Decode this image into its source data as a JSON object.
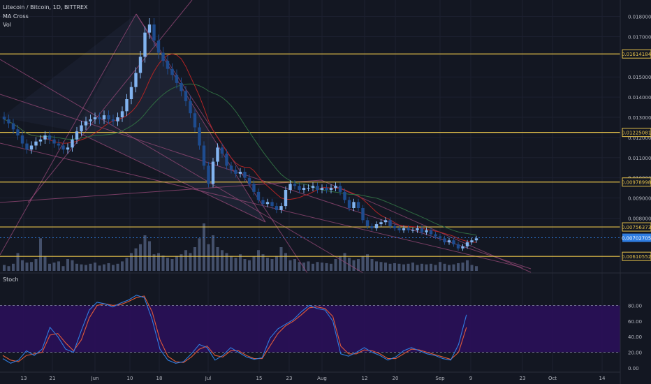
{
  "header": {
    "symbol": "Litecoin / Bitcoin, 1D, BITTREX",
    "indicators": [
      "MA Cross",
      "Vol"
    ]
  },
  "stoch": {
    "label": "Stoch"
  },
  "colors": {
    "background": "#131722",
    "candle_up": "#82b4f0",
    "candle_down": "#1e4c8f",
    "volume": "#4d5a78",
    "ma_fast": "#b32424",
    "ma_slow": "#2f6b41",
    "level": "#e4c04a",
    "trend": "#9a4a7a",
    "stoch_k": "#2f7de1",
    "stoch_d": "#e05a3a",
    "stoch_band": "#2b0f5c"
  },
  "chart_data": {
    "type": "candlestick",
    "x_ticks": [
      "13",
      "21",
      "Jun",
      "10",
      "18",
      "Jul",
      "15",
      "23",
      "Aug",
      "12",
      "20",
      "Sep",
      "9",
      "23",
      "Oct",
      "14"
    ],
    "y_ticks": [
      "0.01800000",
      "0.01700000",
      "0.01500000",
      "0.01400000",
      "0.01300000",
      "0.01200000",
      "0.01100000",
      "0.01000000",
      "0.00900000",
      "0.00800000"
    ],
    "y_range": [
      0.0058,
      0.0184
    ],
    "levels": [
      {
        "value": 0.01614184,
        "label": "0.01614184"
      },
      {
        "value": 0.01225081,
        "label": "0.01225081"
      },
      {
        "value": 0.00978998,
        "label": "0.00978998"
      },
      {
        "value": 0.00756373,
        "label": "0.00756373"
      },
      {
        "value": 0.00610552,
        "label": "0.00610552"
      }
    ],
    "last_price": {
      "value": 0.00702705,
      "label": "0.00702705"
    },
    "close_series": [
      0.0129,
      0.0127,
      0.0124,
      0.0121,
      0.0117,
      0.0114,
      0.0116,
      0.0118,
      0.0119,
      0.0121,
      0.0119,
      0.0117,
      0.0116,
      0.0114,
      0.0115,
      0.0119,
      0.0123,
      0.0126,
      0.0128,
      0.0129,
      0.013,
      0.0129,
      0.0131,
      0.0129,
      0.0128,
      0.013,
      0.0133,
      0.0139,
      0.0145,
      0.0152,
      0.016,
      0.0172,
      0.0176,
      0.0168,
      0.0162,
      0.0158,
      0.0154,
      0.0151,
      0.0147,
      0.0143,
      0.0138,
      0.0132,
      0.0125,
      0.0116,
      0.0106,
      0.0097,
      0.0108,
      0.0115,
      0.0112,
      0.0106,
      0.0104,
      0.0102,
      0.0103,
      0.01,
      0.0097,
      0.0093,
      0.0089,
      0.0087,
      0.0088,
      0.0086,
      0.0084,
      0.0086,
      0.0094,
      0.0097,
      0.0096,
      0.0094,
      0.0095,
      0.0095,
      0.0096,
      0.0094,
      0.0095,
      0.0094,
      0.0095,
      0.0096,
      0.0093,
      0.0089,
      0.0085,
      0.0088,
      0.0085,
      0.0079,
      0.0076,
      0.0075,
      0.0077,
      0.0078,
      0.0079,
      0.0076,
      0.0075,
      0.0074,
      0.0075,
      0.0074,
      0.0074,
      0.0075,
      0.0073,
      0.0074,
      0.0072,
      0.0071,
      0.007,
      0.0068,
      0.0069,
      0.0067,
      0.0065,
      0.0066,
      0.0068,
      0.0069,
      0.007
    ],
    "volume_series": [
      10,
      8,
      12,
      30,
      18,
      14,
      15,
      20,
      55,
      25,
      12,
      14,
      16,
      8,
      20,
      18,
      12,
      11,
      10,
      12,
      14,
      9,
      11,
      13,
      10,
      12,
      16,
      22,
      30,
      38,
      45,
      60,
      50,
      28,
      30,
      26,
      22,
      20,
      25,
      28,
      35,
      30,
      40,
      55,
      80,
      45,
      60,
      40,
      35,
      30,
      25,
      22,
      28,
      20,
      18,
      24,
      35,
      28,
      22,
      20,
      25,
      40,
      30,
      18,
      20,
      15,
      14,
      16,
      12,
      15,
      14,
      13,
      12,
      20,
      25,
      30,
      22,
      18,
      20,
      25,
      28,
      20,
      16,
      15,
      14,
      12,
      13,
      12,
      11,
      12,
      14,
      10,
      12,
      11,
      12,
      10,
      15,
      12,
      10,
      11,
      13,
      14,
      18,
      10,
      8
    ],
    "stoch": {
      "y_ticks": [
        "80.00",
        "60.00",
        "40.00",
        "20.00",
        "0.00"
      ],
      "band": [
        20,
        80
      ],
      "k_series": [
        12,
        6,
        10,
        22,
        16,
        24,
        52,
        40,
        24,
        20,
        48,
        74,
        84,
        82,
        78,
        83,
        87,
        93,
        90,
        62,
        24,
        10,
        6,
        8,
        18,
        30,
        26,
        10,
        16,
        26,
        20,
        14,
        11,
        13,
        38,
        50,
        56,
        62,
        72,
        80,
        76,
        74,
        60,
        18,
        15,
        20,
        26,
        20,
        16,
        10,
        14,
        22,
        26,
        22,
        18,
        16,
        12,
        10,
        30,
        68
      ],
      "d_series": [
        16,
        10,
        8,
        16,
        18,
        20,
        42,
        44,
        32,
        22,
        36,
        64,
        80,
        82,
        80,
        81,
        85,
        90,
        92,
        72,
        36,
        15,
        8,
        7,
        14,
        24,
        28,
        16,
        14,
        22,
        22,
        16,
        12,
        12,
        28,
        44,
        54,
        60,
        68,
        77,
        78,
        76,
        66,
        28,
        18,
        18,
        23,
        22,
        18,
        12,
        12,
        18,
        24,
        23,
        20,
        17,
        14,
        11,
        20,
        52
      ]
    }
  }
}
